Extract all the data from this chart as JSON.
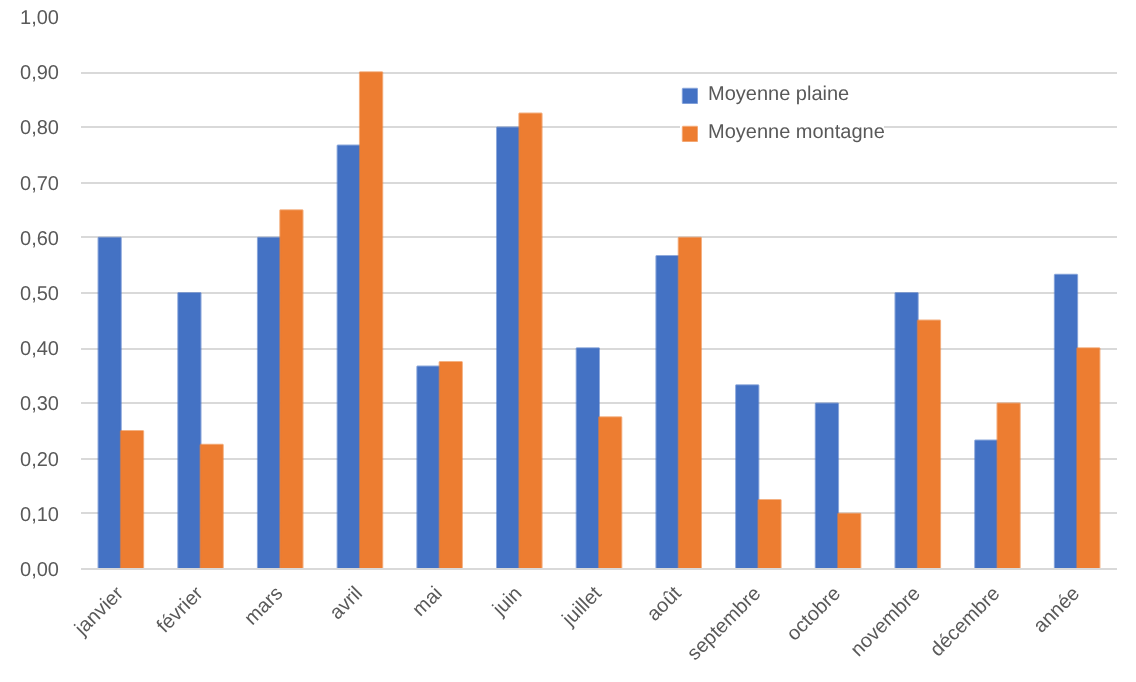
{
  "chart_data": {
    "type": "bar",
    "categories": [
      "janvier",
      "février",
      "mars",
      "avril",
      "mai",
      "juin",
      "juillet",
      "août",
      "septembre",
      "octobre",
      "novembre",
      "décembre",
      "année"
    ],
    "series": [
      {
        "name": "Moyenne plaine",
        "color": "#4472c4",
        "values": [
          0.6,
          0.5,
          0.6,
          0.767,
          0.367,
          0.8,
          0.4,
          0.567,
          0.333,
          0.3,
          0.5,
          0.233,
          0.533
        ]
      },
      {
        "name": "Moyenne montagne",
        "color": "#ed7d31",
        "values": [
          0.25,
          0.225,
          0.65,
          0.9,
          0.375,
          0.825,
          0.275,
          0.6,
          0.125,
          0.1,
          0.45,
          0.3,
          0.4
        ]
      }
    ],
    "ylim": [
      0,
      1
    ],
    "yticks": [
      {
        "value": 0,
        "label": "0,00"
      },
      {
        "value": 0.1,
        "label": "0,10"
      },
      {
        "value": 0.2,
        "label": "0,20"
      },
      {
        "value": 0.3,
        "label": "0,30"
      },
      {
        "value": 0.4,
        "label": "0,40"
      },
      {
        "value": 0.5,
        "label": "0,50"
      },
      {
        "value": 0.6,
        "label": "0,60"
      },
      {
        "value": 0.7,
        "label": "0,70"
      },
      {
        "value": 0.8,
        "label": "0,80"
      },
      {
        "value": 0.9,
        "label": "0,90"
      },
      {
        "value": 1,
        "label": "1,00"
      }
    ],
    "grid": "y",
    "legend": "top"
  }
}
